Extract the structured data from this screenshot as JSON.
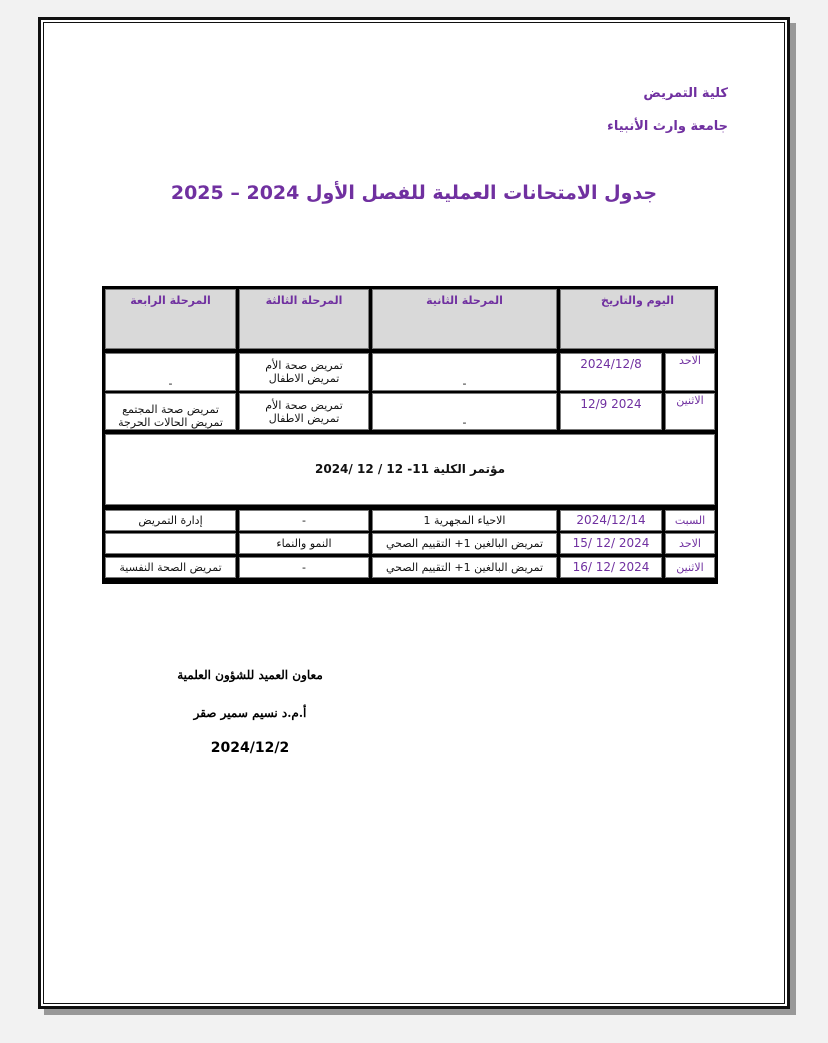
{
  "header": {
    "faculty": "كلية التمريض",
    "university": "جامعة وارث الأنبياء"
  },
  "title": "جدول الامتحانات العملية للفصل الأول 2024 – 2025",
  "table": {
    "columns": [
      "اليوم والتاريخ",
      "المرحلة الثانية",
      "المرحلة الثالثة",
      "المرحلة الرابعة"
    ],
    "rows": [
      {
        "day": "الاحد",
        "date": "2024/12/8",
        "stage2": "-",
        "stage3": "تمريض صحة الأم\nتمريض الاطفال",
        "stage4": "-"
      },
      {
        "day": "الاثنين",
        "date": "2024 12/9",
        "stage2": "-",
        "stage3": "تمريض صحة الأم\nتمريض الاطفال",
        "stage4": "تمريض صحة المجتمع\nتمريض الحالات الحرجة"
      },
      {
        "day": "السبت",
        "date": "2024/12/14",
        "stage2": "الاحياء المجهرية 1",
        "stage3": "-",
        "stage4": "إدارة التمريض"
      },
      {
        "day": "الاحد",
        "date": "2024 /12 /15",
        "stage2": "تمريض البالغين 1+ التقييم الصحي",
        "stage3": "النمو والنماء",
        "stage4": ""
      },
      {
        "day": "الاثنين",
        "date": "2024 /12 /16",
        "stage2": "تمريض البالغين 1+ التقييم الصحي",
        "stage3": "-",
        "stage4": "تمريض الصحة النفسية"
      }
    ],
    "conference": "مؤتمر الكلية 11- 12 / 12 /2024"
  },
  "signature": {
    "role": "معاون العميد للشؤون العلمية",
    "name": "أ.م.د نسيم سمير صقر",
    "date": "2024/12/2"
  },
  "colors": {
    "accent": "#7030a0",
    "header_bg": "#d9d9d9"
  }
}
